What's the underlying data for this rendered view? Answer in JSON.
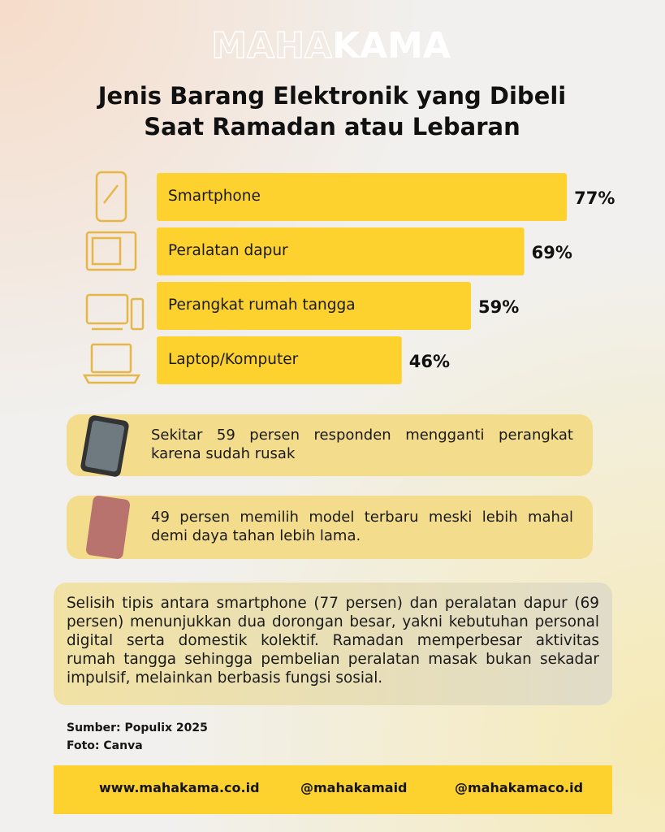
{
  "header": {
    "brand": [
      "MAHA",
      "KAMA"
    ]
  },
  "chart_data": {
    "type": "bar",
    "orientation": "horizontal",
    "title": [
      "Jenis Barang Elektronik yang Dibeli",
      "Saat Ramadan atau Lebaran"
    ],
    "categories": [
      "Smartphone",
      "Peralatan dapur",
      "Perangkat rumah tangga",
      "Laptop/Komputer"
    ],
    "values": [
      77,
      69,
      59,
      46
    ],
    "value_labels": [
      "77%",
      "69%",
      "59%",
      "46%"
    ],
    "color": "#fdd22e"
  },
  "notes": [
    "Sekitar 59 persen responden mengganti perangkat karena sudah rusak",
    "49 persen memilih model terbaru meski lebih mahal demi daya tahan lebih lama."
  ],
  "summary": "Selisih tipis antara smartphone (77 persen) dan peralatan dapur (69 persen) menunjukkan dua dorongan besar, yakni kebutuhan personal digital serta domestik kolektif. Ramadan memperbesar aktivitas rumah tangga sehingga pembelian peralatan masak bukan sekadar impulsif, melainkan berbasis fungsi sosial.",
  "source": "Sumber: Populix 2025",
  "photo": "Foto: Canva",
  "footer": [
    "www.mahakama.co.id",
    "@mahakamaid",
    "@mahakamaco.id"
  ]
}
